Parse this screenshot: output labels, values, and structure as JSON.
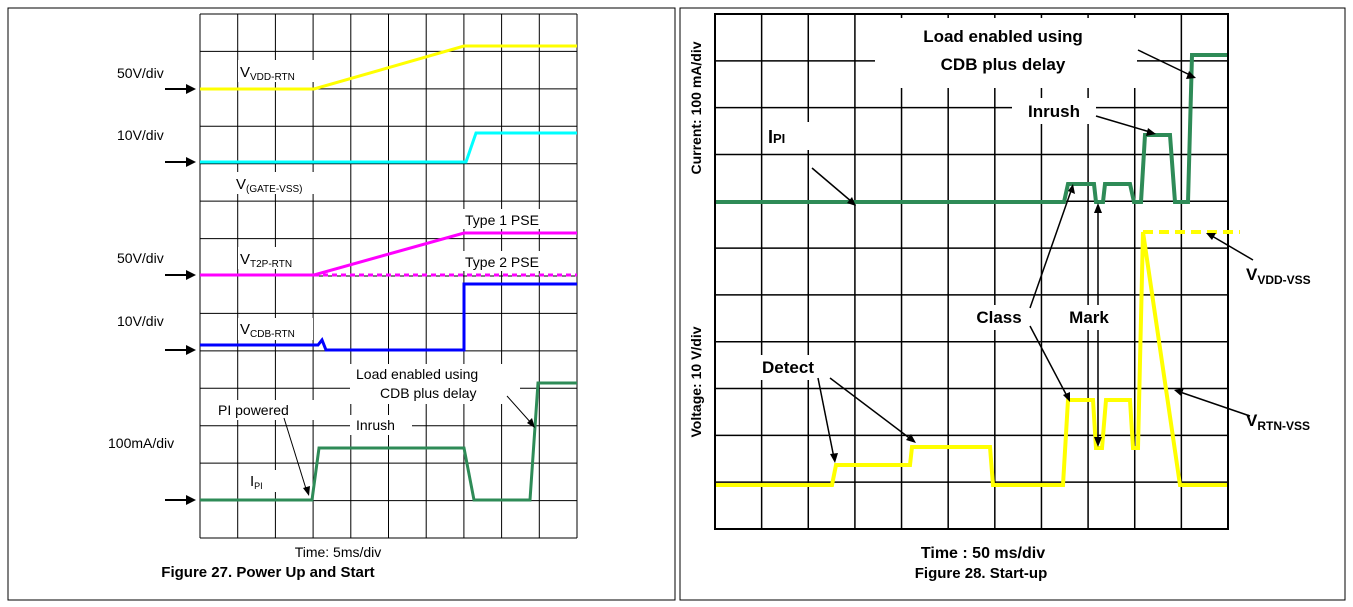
{
  "figures": [
    {
      "caption": "Figure 27. Power Up and Start",
      "time_label": "Time: 5ms/div",
      "traces": [
        {
          "name": "V",
          "sub": "VDD-RTN",
          "scale": "50V/div",
          "color": "#ffff00"
        },
        {
          "name": "V",
          "sub": "(GATE-VSS)",
          "scale": "10V/div",
          "color": "#00ffff"
        },
        {
          "name": "V",
          "sub": "T2P-RTN",
          "scale": "50V/div",
          "color": "#ff00ff"
        },
        {
          "name": "V",
          "sub": "CDB-RTN",
          "scale": "10V/div",
          "color": "#0000ff"
        },
        {
          "name": "I",
          "sub": "PI",
          "scale": "100mA/div",
          "color": "#2e8b57"
        }
      ],
      "annotations": [
        "Type 1 PSE",
        "Type 2 PSE",
        "Load enabled using",
        "CDB plus delay",
        "PI powered",
        "Inrush"
      ]
    },
    {
      "caption": "Figure 28. Start-up",
      "time_label": "Time : 50 ms/div",
      "current_axis_label": "Current: 100 mA/div",
      "voltage_axis_label": "Voltage: 10 V/div",
      "annotations": {
        "load_line1": "Load enabled using",
        "load_line2": "CDB plus delay",
        "inrush": "Inrush",
        "ipi_main": "I",
        "ipi_sub": "PI",
        "class": "Class",
        "mark": "Mark",
        "detect": "Detect",
        "vdd_main": "V",
        "vdd_sub": "VDD-VSS",
        "vrtn_main": "V",
        "vrtn_sub": "RTN-VSS"
      },
      "colors": {
        "current": "#2e8b57",
        "voltage": "#ffff00"
      }
    }
  ],
  "chart_data": [
    {
      "type": "line",
      "title": "Figure 27. Power Up and Start",
      "xlabel": "Time: 5ms/div",
      "x_unit": "divisions",
      "series": [
        {
          "name": "VDD-RTN (50V/div)",
          "points": [
            [
              0,
              1.0
            ],
            [
              3,
              1.0
            ],
            [
              7,
              2.0
            ],
            [
              10,
              2.0
            ]
          ]
        },
        {
          "name": "(GATE-VSS) (10V/div)",
          "points": [
            [
              0,
              0
            ],
            [
              7.1,
              0
            ],
            [
              7.3,
              0.7
            ],
            [
              10,
              0.7
            ]
          ]
        },
        {
          "name": "T2P-RTN Type 1 PSE (50V/div)",
          "points": [
            [
              0,
              1.0
            ],
            [
              3,
              1.0
            ],
            [
              7,
              2.0
            ],
            [
              10,
              2.0
            ]
          ]
        },
        {
          "name": "T2P-RTN Type 2 PSE (50V/div)",
          "points": [
            [
              3,
              1.0
            ],
            [
              10,
              1.0
            ]
          ]
        },
        {
          "name": "CDB-RTN (10V/div)",
          "points": [
            [
              0,
              0
            ],
            [
              3.1,
              0
            ],
            [
              3.3,
              0.1
            ],
            [
              3.4,
              -0.1
            ],
            [
              7.1,
              -0.1
            ],
            [
              7.1,
              1.5
            ],
            [
              10,
              1.5
            ]
          ]
        },
        {
          "name": "PI (100mA/div)",
          "points": [
            [
              0,
              0
            ],
            [
              3.1,
              0
            ],
            [
              3.3,
              1.4
            ],
            [
              7.1,
              1.4
            ],
            [
              7.3,
              0
            ],
            [
              9.3,
              0
            ],
            [
              9.5,
              3.1
            ],
            [
              10,
              3.1
            ]
          ]
        }
      ]
    },
    {
      "type": "line",
      "title": "Figure 28. Start-up",
      "xlabel": "Time : 50 ms/div",
      "ylabel": "Current: 100 mA/div / Voltage: 10 V/div",
      "x_unit": "divisions",
      "series": [
        {
          "name": "IPI",
          "points": [
            [
              0,
              0
            ],
            [
              7.4,
              0
            ],
            [
              7.5,
              0.4
            ],
            [
              8.2,
              0.4
            ],
            [
              8.25,
              0
            ],
            [
              8.4,
              0
            ],
            [
              8.45,
              0.4
            ],
            [
              9.1,
              0.4
            ],
            [
              9.2,
              0
            ],
            [
              9.5,
              0
            ],
            [
              9.6,
              1.5
            ],
            [
              10.0,
              1.5
            ],
            [
              10.1,
              0
            ],
            [
              10.55,
              0
            ],
            [
              10.6,
              3.1
            ],
            [
              11,
              3.1
            ]
          ]
        },
        {
          "name": "VRTN-VSS",
          "points": [
            [
              0,
              0
            ],
            [
              2.55,
              0
            ],
            [
              2.65,
              0.4
            ],
            [
              4.55,
              0.4
            ],
            [
              4.6,
              0.8
            ],
            [
              5.75,
              0.8
            ],
            [
              5.8,
              0
            ],
            [
              7.6,
              0
            ],
            [
              7.65,
              1.9
            ],
            [
              8.4,
              1.9
            ],
            [
              8.45,
              0.8
            ],
            [
              8.65,
              0.8
            ],
            [
              8.7,
              1.9
            ],
            [
              9.5,
              1.9
            ],
            [
              9.55,
              0.8
            ],
            [
              9.7,
              0.8
            ],
            [
              9.75,
              5.4
            ],
            [
              10.55,
              0
            ],
            [
              11,
              0
            ]
          ]
        },
        {
          "name": "VDD-VSS",
          "points": [
            [
              9.75,
              5.4
            ],
            [
              11,
              5.4
            ]
          ]
        }
      ]
    }
  ]
}
